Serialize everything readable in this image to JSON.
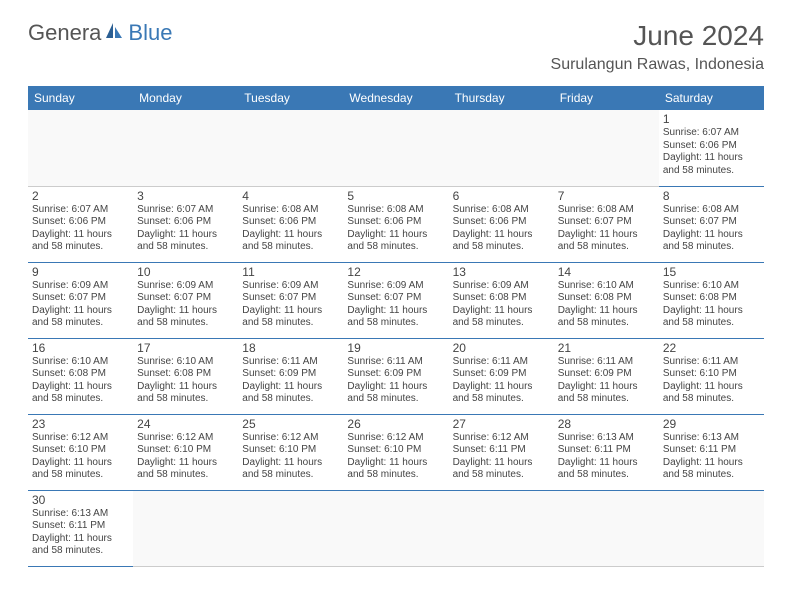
{
  "logo": {
    "part1": "Genera",
    "part2": "Blue"
  },
  "title": "June 2024",
  "location": "Surulangun Rawas, Indonesia",
  "colors": {
    "header_bg": "#3a78b5",
    "header_fg": "#ffffff",
    "border": "#3a78b5",
    "text": "#444444"
  },
  "day_headers": [
    "Sunday",
    "Monday",
    "Tuesday",
    "Wednesday",
    "Thursday",
    "Friday",
    "Saturday"
  ],
  "weeks": [
    [
      null,
      null,
      null,
      null,
      null,
      null,
      {
        "n": "1",
        "sr": "Sunrise: 6:07 AM",
        "ss": "Sunset: 6:06 PM",
        "d1": "Daylight: 11 hours",
        "d2": "and 58 minutes."
      }
    ],
    [
      {
        "n": "2",
        "sr": "Sunrise: 6:07 AM",
        "ss": "Sunset: 6:06 PM",
        "d1": "Daylight: 11 hours",
        "d2": "and 58 minutes."
      },
      {
        "n": "3",
        "sr": "Sunrise: 6:07 AM",
        "ss": "Sunset: 6:06 PM",
        "d1": "Daylight: 11 hours",
        "d2": "and 58 minutes."
      },
      {
        "n": "4",
        "sr": "Sunrise: 6:08 AM",
        "ss": "Sunset: 6:06 PM",
        "d1": "Daylight: 11 hours",
        "d2": "and 58 minutes."
      },
      {
        "n": "5",
        "sr": "Sunrise: 6:08 AM",
        "ss": "Sunset: 6:06 PM",
        "d1": "Daylight: 11 hours",
        "d2": "and 58 minutes."
      },
      {
        "n": "6",
        "sr": "Sunrise: 6:08 AM",
        "ss": "Sunset: 6:06 PM",
        "d1": "Daylight: 11 hours",
        "d2": "and 58 minutes."
      },
      {
        "n": "7",
        "sr": "Sunrise: 6:08 AM",
        "ss": "Sunset: 6:07 PM",
        "d1": "Daylight: 11 hours",
        "d2": "and 58 minutes."
      },
      {
        "n": "8",
        "sr": "Sunrise: 6:08 AM",
        "ss": "Sunset: 6:07 PM",
        "d1": "Daylight: 11 hours",
        "d2": "and 58 minutes."
      }
    ],
    [
      {
        "n": "9",
        "sr": "Sunrise: 6:09 AM",
        "ss": "Sunset: 6:07 PM",
        "d1": "Daylight: 11 hours",
        "d2": "and 58 minutes."
      },
      {
        "n": "10",
        "sr": "Sunrise: 6:09 AM",
        "ss": "Sunset: 6:07 PM",
        "d1": "Daylight: 11 hours",
        "d2": "and 58 minutes."
      },
      {
        "n": "11",
        "sr": "Sunrise: 6:09 AM",
        "ss": "Sunset: 6:07 PM",
        "d1": "Daylight: 11 hours",
        "d2": "and 58 minutes."
      },
      {
        "n": "12",
        "sr": "Sunrise: 6:09 AM",
        "ss": "Sunset: 6:07 PM",
        "d1": "Daylight: 11 hours",
        "d2": "and 58 minutes."
      },
      {
        "n": "13",
        "sr": "Sunrise: 6:09 AM",
        "ss": "Sunset: 6:08 PM",
        "d1": "Daylight: 11 hours",
        "d2": "and 58 minutes."
      },
      {
        "n": "14",
        "sr": "Sunrise: 6:10 AM",
        "ss": "Sunset: 6:08 PM",
        "d1": "Daylight: 11 hours",
        "d2": "and 58 minutes."
      },
      {
        "n": "15",
        "sr": "Sunrise: 6:10 AM",
        "ss": "Sunset: 6:08 PM",
        "d1": "Daylight: 11 hours",
        "d2": "and 58 minutes."
      }
    ],
    [
      {
        "n": "16",
        "sr": "Sunrise: 6:10 AM",
        "ss": "Sunset: 6:08 PM",
        "d1": "Daylight: 11 hours",
        "d2": "and 58 minutes."
      },
      {
        "n": "17",
        "sr": "Sunrise: 6:10 AM",
        "ss": "Sunset: 6:08 PM",
        "d1": "Daylight: 11 hours",
        "d2": "and 58 minutes."
      },
      {
        "n": "18",
        "sr": "Sunrise: 6:11 AM",
        "ss": "Sunset: 6:09 PM",
        "d1": "Daylight: 11 hours",
        "d2": "and 58 minutes."
      },
      {
        "n": "19",
        "sr": "Sunrise: 6:11 AM",
        "ss": "Sunset: 6:09 PM",
        "d1": "Daylight: 11 hours",
        "d2": "and 58 minutes."
      },
      {
        "n": "20",
        "sr": "Sunrise: 6:11 AM",
        "ss": "Sunset: 6:09 PM",
        "d1": "Daylight: 11 hours",
        "d2": "and 58 minutes."
      },
      {
        "n": "21",
        "sr": "Sunrise: 6:11 AM",
        "ss": "Sunset: 6:09 PM",
        "d1": "Daylight: 11 hours",
        "d2": "and 58 minutes."
      },
      {
        "n": "22",
        "sr": "Sunrise: 6:11 AM",
        "ss": "Sunset: 6:10 PM",
        "d1": "Daylight: 11 hours",
        "d2": "and 58 minutes."
      }
    ],
    [
      {
        "n": "23",
        "sr": "Sunrise: 6:12 AM",
        "ss": "Sunset: 6:10 PM",
        "d1": "Daylight: 11 hours",
        "d2": "and 58 minutes."
      },
      {
        "n": "24",
        "sr": "Sunrise: 6:12 AM",
        "ss": "Sunset: 6:10 PM",
        "d1": "Daylight: 11 hours",
        "d2": "and 58 minutes."
      },
      {
        "n": "25",
        "sr": "Sunrise: 6:12 AM",
        "ss": "Sunset: 6:10 PM",
        "d1": "Daylight: 11 hours",
        "d2": "and 58 minutes."
      },
      {
        "n": "26",
        "sr": "Sunrise: 6:12 AM",
        "ss": "Sunset: 6:10 PM",
        "d1": "Daylight: 11 hours",
        "d2": "and 58 minutes."
      },
      {
        "n": "27",
        "sr": "Sunrise: 6:12 AM",
        "ss": "Sunset: 6:11 PM",
        "d1": "Daylight: 11 hours",
        "d2": "and 58 minutes."
      },
      {
        "n": "28",
        "sr": "Sunrise: 6:13 AM",
        "ss": "Sunset: 6:11 PM",
        "d1": "Daylight: 11 hours",
        "d2": "and 58 minutes."
      },
      {
        "n": "29",
        "sr": "Sunrise: 6:13 AM",
        "ss": "Sunset: 6:11 PM",
        "d1": "Daylight: 11 hours",
        "d2": "and 58 minutes."
      }
    ],
    [
      {
        "n": "30",
        "sr": "Sunrise: 6:13 AM",
        "ss": "Sunset: 6:11 PM",
        "d1": "Daylight: 11 hours",
        "d2": "and 58 minutes."
      },
      null,
      null,
      null,
      null,
      null,
      null
    ]
  ]
}
